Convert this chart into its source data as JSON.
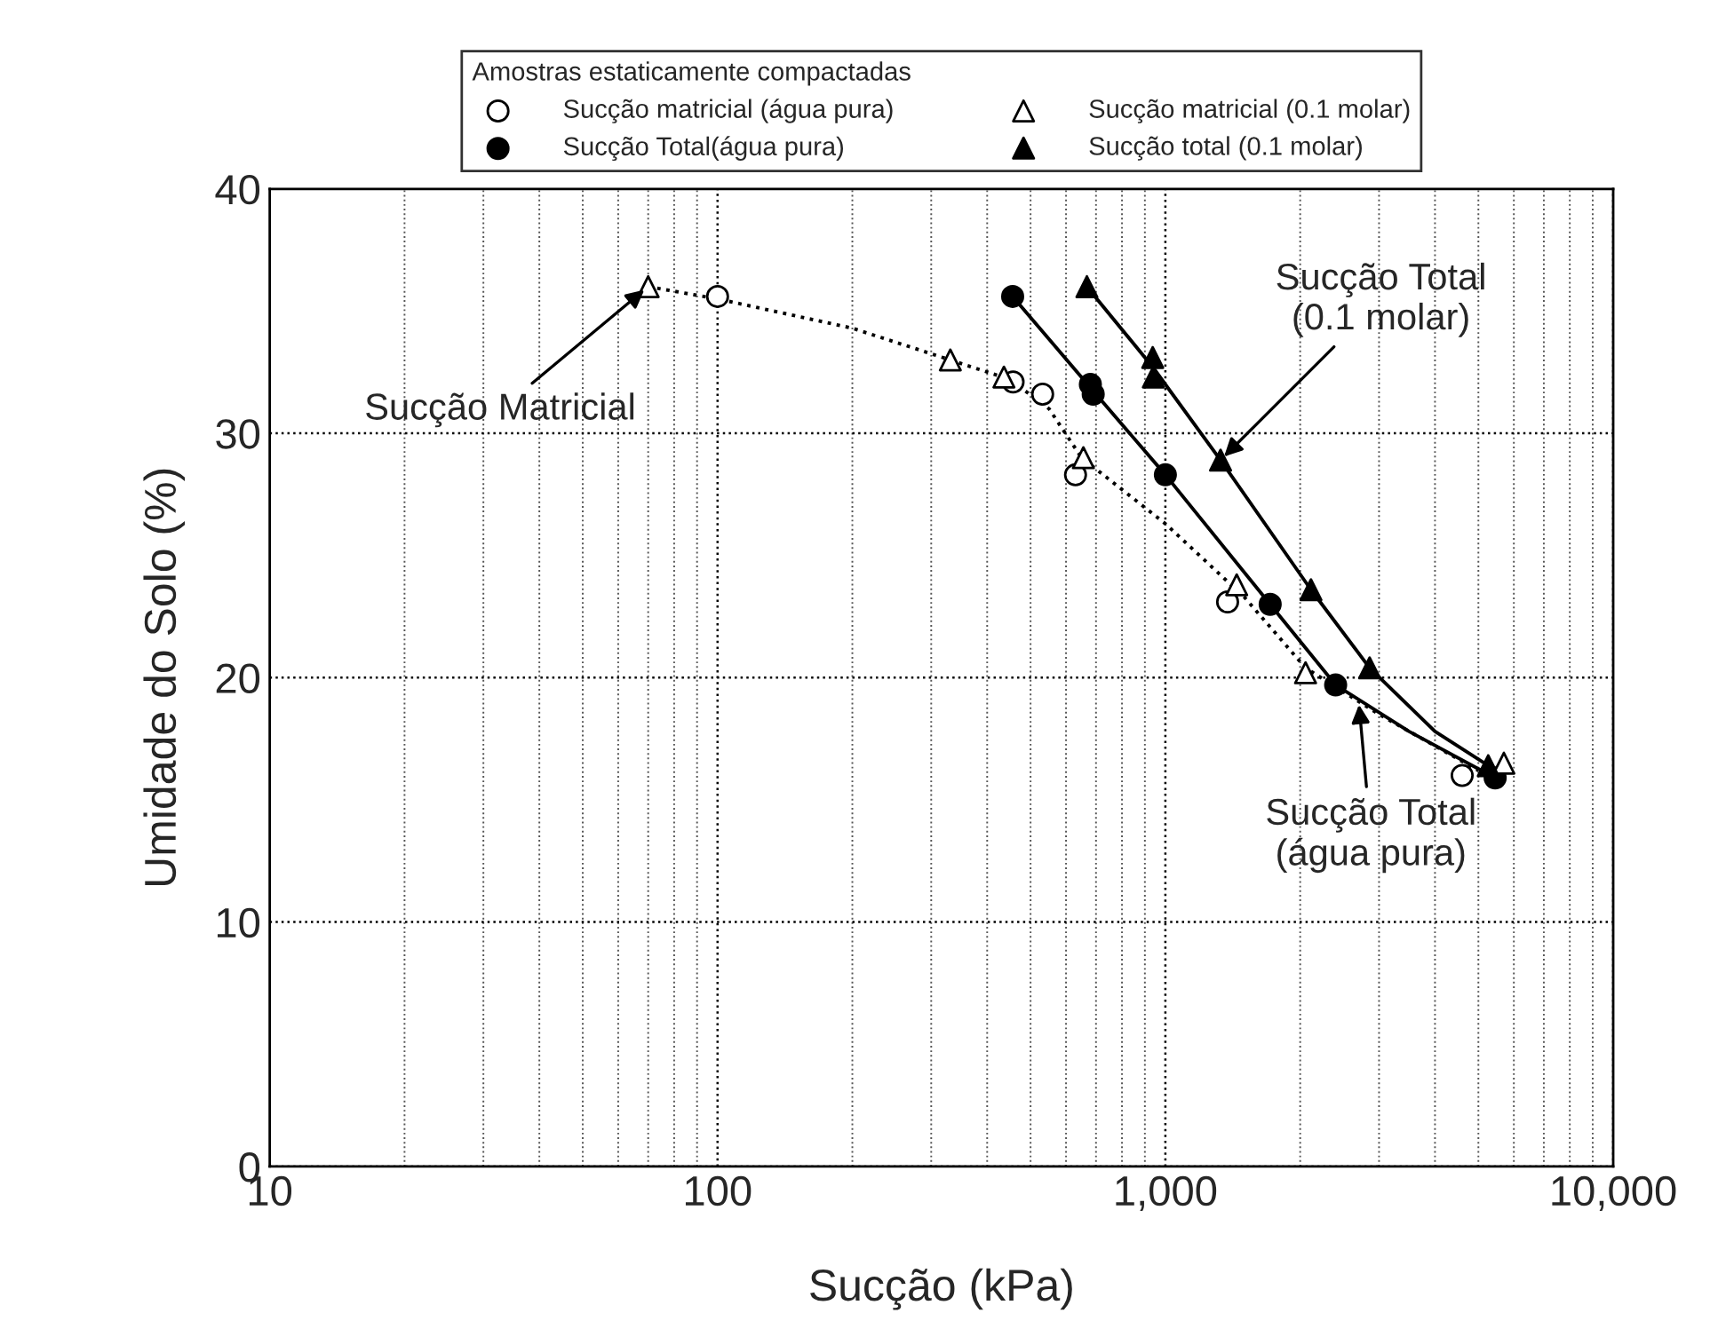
{
  "chart_data": {
    "type": "scatter",
    "xlabel": "Sucção (kPa)",
    "ylabel": "Umidade do Solo (%)",
    "legend_title": "Amostras estaticamente compactadas",
    "log": "x",
    "xlim": [
      10,
      10000
    ],
    "ylim": [
      0,
      40
    ],
    "xticks": [
      10,
      100,
      {
        "value": 1000,
        "label": "1,000"
      },
      {
        "value": 10000,
        "label": "10,000"
      }
    ],
    "yticks": [
      0,
      10,
      20,
      30,
      40
    ],
    "grid": true,
    "legend": "top",
    "series": [
      {
        "name": "Sucção matricial (água pura)",
        "color": "#000000",
        "marker": "circle",
        "x": [
          100,
          457,
          532,
          630,
          1377,
          4600
        ],
        "values": [
          35.6,
          32.1,
          31.6,
          28.3,
          23.1,
          16.0
        ]
      },
      {
        "name": "Sucção Total(água pura)",
        "color": "#000000",
        "marker": "circle",
        "x": [
          456,
          680,
          690,
          1000,
          1714,
          2400,
          5450
        ],
        "values": [
          35.6,
          32.0,
          31.6,
          28.3,
          23.0,
          19.7,
          15.9
        ]
      },
      {
        "name": "Sucção matricial (0.1 molar)",
        "color": "#000000",
        "marker": "triangle",
        "x": [
          70,
          331,
          436,
          656,
          1443,
          2056,
          5700
        ],
        "values": [
          36.0,
          33.0,
          32.3,
          29.0,
          23.8,
          20.2,
          16.5
        ]
      },
      {
        "name": "Sucção total (0.1 molar)",
        "color": "#000000",
        "marker": "triangle",
        "x": [
          668,
          937,
          940,
          1328,
          2114,
          2858,
          5260
        ],
        "values": [
          36.0,
          33.1,
          32.3,
          28.9,
          23.6,
          20.4,
          16.4
        ]
      },
      {
        "type": "line",
        "color": "#000000",
        "line_style": "dotted",
        "x": [
          70,
          100,
          200,
          331,
          450,
          550,
          650,
          1000,
          1500,
          2056,
          3000,
          5000
        ],
        "values": [
          36.0,
          35.5,
          34.3,
          33.0,
          32.2,
          31.0,
          29.0,
          26.3,
          23.3,
          20.4,
          18.5,
          16.2
        ]
      },
      {
        "type": "line",
        "color": "#000000",
        "line_style": "solid",
        "x": [
          456,
          685,
          1000,
          1714,
          2400,
          3500,
          5450
        ],
        "values": [
          35.6,
          31.8,
          28.3,
          23.0,
          19.7,
          17.8,
          15.9
        ]
      },
      {
        "type": "line",
        "color": "#000000",
        "line_style": "solid",
        "x": [
          668,
          938,
          1328,
          2114,
          2858,
          4000,
          5260
        ],
        "values": [
          36.0,
          32.7,
          28.9,
          23.6,
          20.4,
          17.8,
          16.4
        ]
      }
    ],
    "annotations": [
      {
        "text": "Sucção Matricial",
        "x": 70,
        "y": 36.0
      },
      {
        "text": "Sucção Total\n(0.1 molar)",
        "x": 1328,
        "y": 28.9
      },
      {
        "text": "Sucção Total\n(água pura)",
        "x": 2700,
        "y": 19.1
      }
    ]
  }
}
